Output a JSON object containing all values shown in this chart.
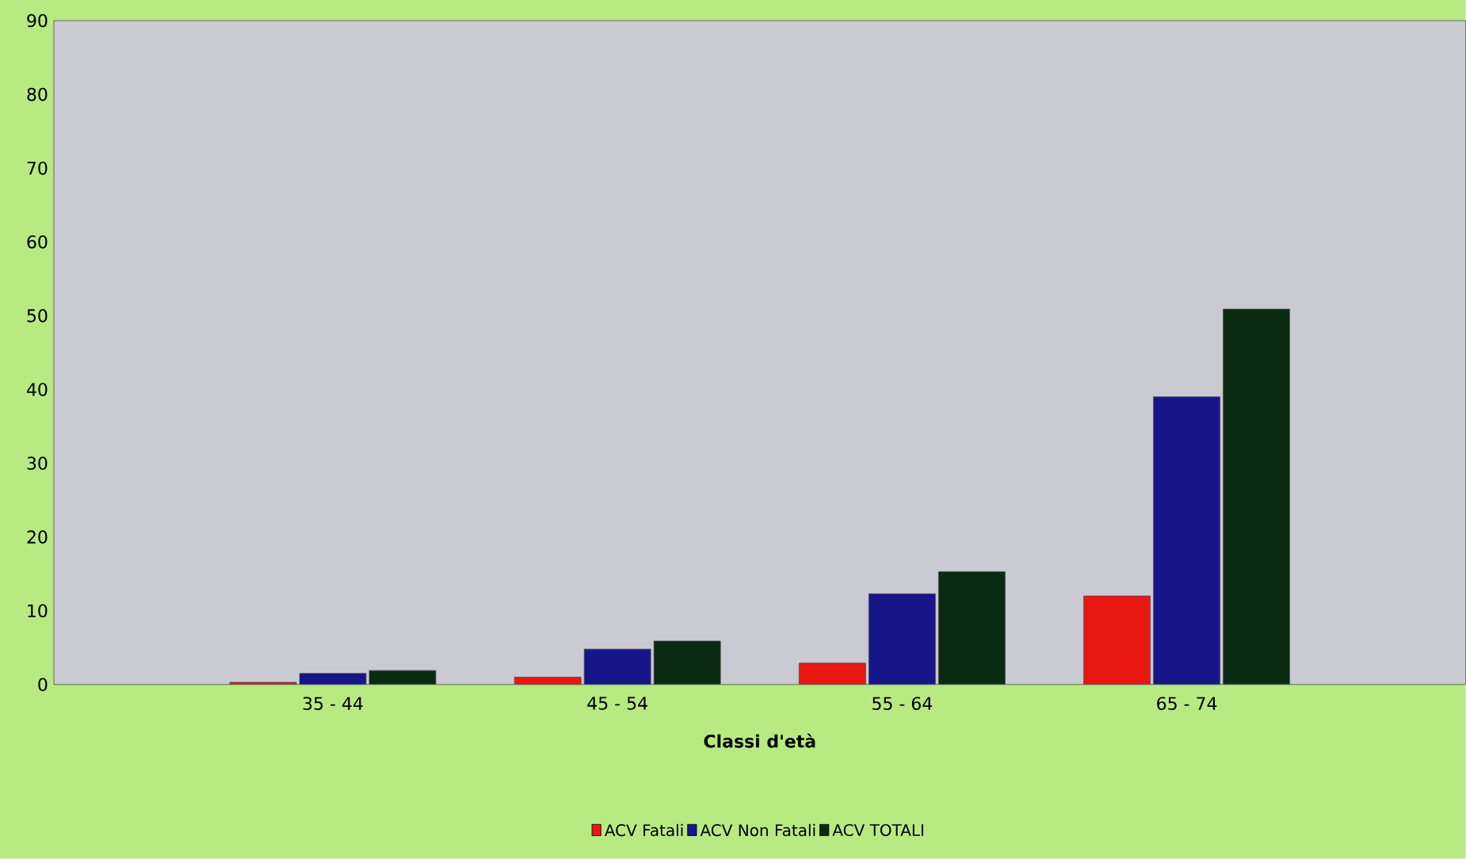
{
  "chart_data": {
    "type": "bar",
    "xlabel": "Classi d'età",
    "categories": [
      "35 - 44",
      "45 - 54",
      "55 - 64",
      "65 - 74"
    ],
    "series": [
      {
        "name": "ACV Fatali",
        "color": "#e8170f",
        "values": [
          0.3,
          1.0,
          2.9,
          12.0
        ]
      },
      {
        "name": "ACV Non Fatali",
        "color": "#16168a",
        "values": [
          1.5,
          4.8,
          12.3,
          39.0
        ]
      },
      {
        "name": "ACV TOTALI",
        "color": "#0b2a12",
        "values": [
          1.9,
          5.9,
          15.3,
          50.9
        ]
      }
    ],
    "ylim": [
      0,
      90
    ],
    "yticks": [
      0,
      10,
      20,
      30,
      40,
      50,
      60,
      70,
      80,
      90
    ],
    "grid": false,
    "legend": "bottom"
  }
}
